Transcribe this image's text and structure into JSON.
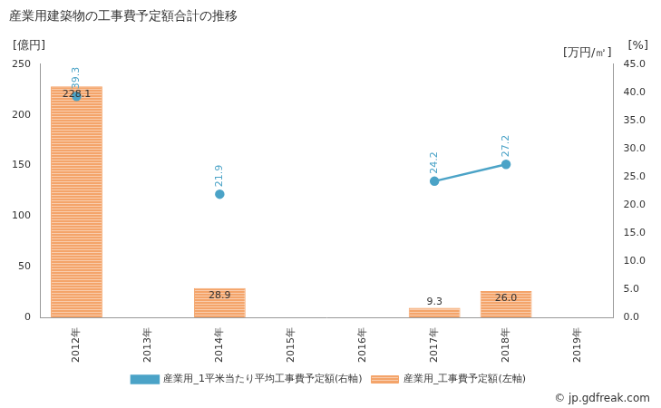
{
  "chart_data": {
    "type": "bar",
    "title": "産業用建築物の工事費予定額合計の推移",
    "y_label": "[億円]",
    "y2_labels": [
      "[万円/㎡]",
      "[%]"
    ],
    "source": "© jp.gdfreak.com",
    "categories": [
      "2012年",
      "2013年",
      "2014年",
      "2015年",
      "2016年",
      "2017年",
      "2018年",
      "2019年"
    ],
    "series": [
      {
        "name": "産業用_工事費予定額(左軸)",
        "type": "bar",
        "color": "#f4a46a",
        "axis": "y",
        "values": [
          228.1,
          null,
          28.9,
          null,
          null,
          9.3,
          26,
          null
        ],
        "value_labels": [
          "228.1",
          null,
          "28.9",
          null,
          null,
          "9.3",
          "26.0",
          null
        ]
      },
      {
        "name": "産業用_1平米当たり平均工事費予定額(右軸)",
        "type": "line",
        "color": "#4ba3c7",
        "axis": "y2",
        "marker": "circle",
        "values": [
          39.3,
          null,
          21.9,
          null,
          null,
          24.2,
          27.2,
          null
        ]
      }
    ],
    "ylim": [
      0,
      250
    ],
    "yticks": [
      0,
      50,
      100,
      150,
      200,
      250
    ],
    "y2lim": [
      0,
      45
    ],
    "y2ticks": [
      {
        "value": 0,
        "label": "0.0"
      },
      {
        "value": 5,
        "label": "5.0"
      },
      {
        "value": 10,
        "label": "10.0"
      },
      {
        "value": 15,
        "label": "15.0"
      },
      {
        "value": 20,
        "label": "20.0"
      },
      {
        "value": 25,
        "label": "25.0"
      },
      {
        "value": 30,
        "label": "30.0"
      },
      {
        "value": 35,
        "label": "35.0"
      },
      {
        "value": 40,
        "label": "40.0"
      },
      {
        "value": 45,
        "label": "45.0"
      }
    ],
    "grid": false,
    "legend": "bottom",
    "data_labels": true
  }
}
